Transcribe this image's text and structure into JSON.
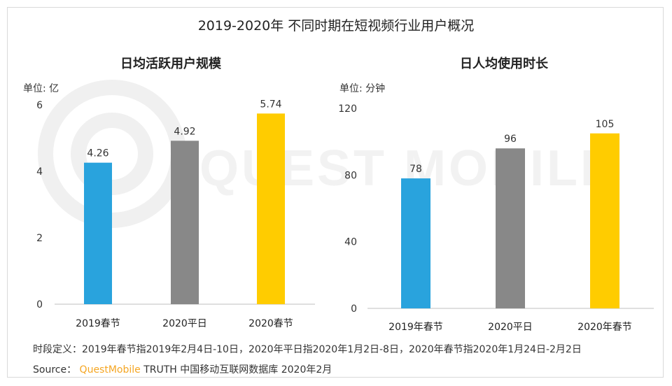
{
  "title": "2019-2020年 不同时期在短视频行业用户概况",
  "watermark": "QUEST MOBILE",
  "chart_data": [
    {
      "type": "bar",
      "title": "日均活跃用户规模",
      "unit_label": "单位: 亿",
      "categories": [
        "2019春节",
        "2020平日",
        "2020春节"
      ],
      "values": [
        4.26,
        4.92,
        5.74
      ],
      "value_labels": [
        "4.26",
        "4.92",
        "5.74"
      ],
      "colors": [
        "#29a3dd",
        "#888888",
        "#ffcc00"
      ],
      "ylim": [
        0,
        6
      ],
      "yticks": [
        0,
        2,
        4,
        6
      ],
      "xlabel": "",
      "ylabel": "单位: 亿"
    },
    {
      "type": "bar",
      "title": "日人均使用时长",
      "unit_label": "单位: 分钟",
      "categories": [
        "2019年春节",
        "2020平日",
        "2020年春节"
      ],
      "values": [
        78,
        96,
        105
      ],
      "value_labels": [
        "78",
        "96",
        "105"
      ],
      "colors": [
        "#29a3dd",
        "#888888",
        "#ffcc00"
      ],
      "ylim": [
        0,
        120
      ],
      "yticks": [
        0,
        40,
        80,
        120
      ],
      "xlabel": "",
      "ylabel": "单位: 分钟"
    }
  ],
  "footnote": "时段定义：2019年春节指2019年2月4日-10日，2020年平日指2020年1月2日-8日，2020年春节指2020年1月24日-2月2日",
  "source": {
    "label": "Source：",
    "brand": "QuestMobile",
    "text": "TRUTH 中国移动互联网数据库 2020年2月"
  }
}
